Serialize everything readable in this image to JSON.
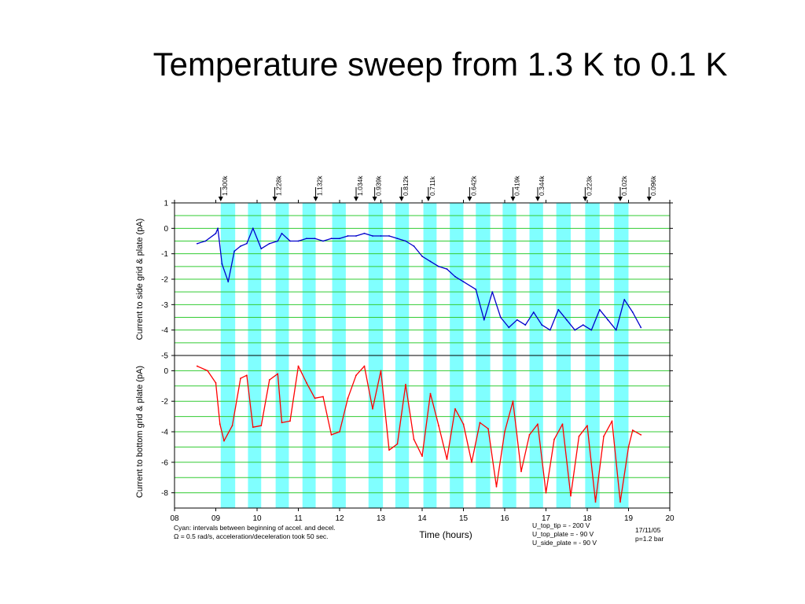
{
  "slide": {
    "title": "Temperature sweep from 1.3 K to 0.1 K"
  },
  "chart_data": {
    "type": "line",
    "x_axis": {
      "label": "Time (hours)",
      "range": [
        8,
        20
      ],
      "tick_labels": [
        "08",
        "09",
        "10",
        "11",
        "12",
        "13",
        "14",
        "15",
        "16",
        "17",
        "18",
        "19",
        "20"
      ]
    },
    "colors": {
      "cyan": "#80ffff",
      "grid": "#33cc33",
      "top_series": "#0000cc",
      "bottom_series": "#ff0000",
      "marker": "#000000"
    },
    "cyan_intervals": [
      [
        9.12,
        9.47
      ],
      [
        9.78,
        10.1
      ],
      [
        10.45,
        10.77
      ],
      [
        11.1,
        11.42
      ],
      [
        11.82,
        12.15
      ],
      [
        12.7,
        13.05
      ],
      [
        13.35,
        13.68
      ],
      [
        14.03,
        14.35
      ],
      [
        14.67,
        15.0
      ],
      [
        15.3,
        15.65
      ],
      [
        15.95,
        16.28
      ],
      [
        16.6,
        16.93
      ],
      [
        17.25,
        17.6
      ],
      [
        17.95,
        18.3
      ],
      [
        18.65,
        19.0
      ]
    ],
    "temperature_markers": [
      {
        "time": 9.12,
        "label": "1.300k"
      },
      {
        "time": 10.43,
        "label": "1.228k"
      },
      {
        "time": 11.42,
        "label": "1.132k"
      },
      {
        "time": 12.4,
        "label": "1.034k"
      },
      {
        "time": 12.85,
        "label": "0.939k"
      },
      {
        "time": 13.5,
        "label": "0.812k"
      },
      {
        "time": 14.15,
        "label": "0.711k"
      },
      {
        "time": 15.15,
        "label": "0.642k"
      },
      {
        "time": 16.2,
        "label": "0.419k"
      },
      {
        "time": 16.8,
        "label": "0.344k"
      },
      {
        "time": 17.95,
        "label": "0.223k"
      },
      {
        "time": 18.8,
        "label": "0.102k"
      },
      {
        "time": 19.5,
        "label": "0.096k"
      }
    ],
    "panels": [
      {
        "name": "top",
        "ylabel": "Current to side grid & plate (pA)",
        "ylim": [
          -5,
          1
        ],
        "yticks": [
          1,
          0,
          -1,
          -2,
          -3,
          -4,
          -5
        ],
        "series": [
          {
            "color": "#0000cc",
            "x": [
              8.55,
              8.75,
              9.0,
              9.05,
              9.15,
              9.3,
              9.45,
              9.6,
              9.75,
              9.9,
              10.1,
              10.3,
              10.5,
              10.6,
              10.8,
              11.0,
              11.2,
              11.4,
              11.6,
              11.8,
              12.0,
              12.2,
              12.4,
              12.6,
              12.8,
              13.0,
              13.2,
              13.4,
              13.6,
              13.8,
              14.0,
              14.2,
              14.4,
              14.6,
              14.8,
              15.0,
              15.3,
              15.5,
              15.7,
              15.9,
              16.1,
              16.3,
              16.5,
              16.7,
              16.9,
              17.1,
              17.3,
              17.5,
              17.7,
              17.9,
              18.1,
              18.3,
              18.5,
              18.7,
              18.9,
              19.1,
              19.3
            ],
            "y": [
              -0.6,
              -0.5,
              -0.2,
              0.0,
              -1.4,
              -2.1,
              -0.9,
              -0.7,
              -0.6,
              0.0,
              -0.8,
              -0.6,
              -0.5,
              -0.2,
              -0.5,
              -0.5,
              -0.4,
              -0.4,
              -0.5,
              -0.4,
              -0.4,
              -0.3,
              -0.3,
              -0.2,
              -0.3,
              -0.3,
              -0.3,
              -0.4,
              -0.5,
              -0.7,
              -1.1,
              -1.3,
              -1.5,
              -1.6,
              -1.9,
              -2.1,
              -2.4,
              -3.6,
              -2.5,
              -3.5,
              -3.9,
              -3.6,
              -3.8,
              -3.3,
              -3.8,
              -4.0,
              -3.2,
              -3.6,
              -4.0,
              -3.8,
              -4.0,
              -3.2,
              -3.6,
              -4.0,
              -2.8,
              -3.3,
              -3.9
            ]
          }
        ]
      },
      {
        "name": "bottom",
        "ylabel": "Current to bottom grid & plate (pA)",
        "ylim": [
          -9,
          1
        ],
        "yticks": [
          0,
          -2,
          -4,
          -6,
          -8
        ],
        "series": [
          {
            "color": "#ff0000",
            "x": [
              8.55,
              8.8,
              9.0,
              9.1,
              9.2,
              9.4,
              9.6,
              9.75,
              9.9,
              10.1,
              10.3,
              10.5,
              10.6,
              10.8,
              11.0,
              11.2,
              11.4,
              11.6,
              11.8,
              12.0,
              12.2,
              12.4,
              12.6,
              12.8,
              13.0,
              13.2,
              13.4,
              13.6,
              13.8,
              14.0,
              14.2,
              14.4,
              14.6,
              14.8,
              15.0,
              15.2,
              15.4,
              15.6,
              15.8,
              16.0,
              16.2,
              16.4,
              16.6,
              16.8,
              17.0,
              17.2,
              17.4,
              17.6,
              17.8,
              18.0,
              18.2,
              18.4,
              18.6,
              18.8,
              19.0,
              19.1,
              19.3
            ],
            "y": [
              0.3,
              0.0,
              -0.8,
              -3.5,
              -4.6,
              -3.6,
              -0.5,
              -0.3,
              -3.7,
              -3.6,
              -0.6,
              -0.2,
              -3.4,
              -3.3,
              0.3,
              -0.8,
              -1.8,
              -1.7,
              -4.2,
              -4.0,
              -1.8,
              -0.3,
              0.3,
              -2.5,
              0.0,
              -5.2,
              -4.8,
              -0.9,
              -4.5,
              -5.6,
              -1.5,
              -3.6,
              -5.8,
              -2.5,
              -3.5,
              -6.0,
              -3.4,
              -3.8,
              -7.6,
              -4.0,
              -2.0,
              -6.6,
              -4.2,
              -3.5,
              -8.0,
              -4.5,
              -3.5,
              -8.2,
              -4.3,
              -3.6,
              -8.6,
              -4.3,
              -3.3,
              -8.6,
              -5.0,
              -3.9,
              -4.2
            ]
          }
        ]
      }
    ]
  },
  "notes": {
    "cyan_legend": "Cyan: intervals between beginning of accel. and decel.\nΩ = 0.5 rad/s, acceleration/deceleration took 50 sec.",
    "voltages": "U_top_tip = - 200 V\nU_top_plate = - 90 V\nU_side_plate = - 90 V",
    "date": "17/11/05\np=1.2 bar"
  }
}
